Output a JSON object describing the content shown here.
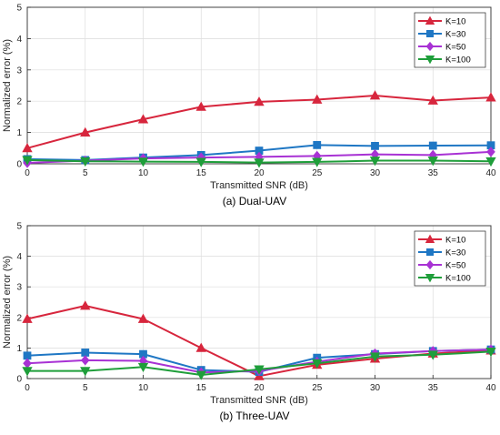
{
  "chart_data": [
    {
      "type": "line",
      "caption": "(a) Dual-UAV",
      "xlabel": "Transmitted SNR (dB)",
      "ylabel": "Normalized error (%)",
      "x": [
        0,
        5,
        10,
        15,
        20,
        25,
        30,
        35,
        40
      ],
      "xlim": [
        0,
        40
      ],
      "ylim": [
        0,
        5
      ],
      "xticks": [
        "0",
        "5",
        "10",
        "15",
        "20",
        "25",
        "30",
        "35",
        "40"
      ],
      "yticks": [
        "0",
        "1",
        "2",
        "3",
        "4",
        "5"
      ],
      "grid": true,
      "legend_position": "top-right",
      "series": [
        {
          "name": "K=10",
          "color": "#d7263d",
          "marker": "triangle-up",
          "values": [
            0.5,
            1.0,
            1.42,
            1.82,
            1.98,
            2.05,
            2.18,
            2.02,
            2.12
          ]
        },
        {
          "name": "K=30",
          "color": "#1f77c4",
          "marker": "square",
          "values": [
            0.15,
            0.12,
            0.2,
            0.28,
            0.42,
            0.6,
            0.57,
            0.58,
            0.59
          ]
        },
        {
          "name": "K=50",
          "color": "#a832d4",
          "marker": "diamond",
          "values": [
            0.03,
            0.1,
            0.17,
            0.2,
            0.22,
            0.25,
            0.3,
            0.28,
            0.38
          ]
        },
        {
          "name": "K=100",
          "color": "#1f9e3a",
          "marker": "triangle-down",
          "values": [
            0.12,
            0.08,
            0.07,
            0.06,
            0.04,
            0.06,
            0.1,
            0.1,
            0.08
          ]
        }
      ]
    },
    {
      "type": "line",
      "caption": "(b) Three-UAV",
      "xlabel": "Transmitted SNR (dB)",
      "ylabel": "Normalized error (%)",
      "x": [
        0,
        5,
        10,
        15,
        20,
        25,
        30,
        35,
        40
      ],
      "xlim": [
        0,
        40
      ],
      "ylim": [
        0,
        5
      ],
      "xticks": [
        "0",
        "5",
        "10",
        "15",
        "20",
        "25",
        "30",
        "35",
        "40"
      ],
      "yticks": [
        "0",
        "1",
        "2",
        "3",
        "4",
        "5"
      ],
      "grid": true,
      "legend_position": "top-right",
      "series": [
        {
          "name": "K=10",
          "color": "#d7263d",
          "marker": "triangle-up",
          "values": [
            1.95,
            2.38,
            1.95,
            1.0,
            0.08,
            0.45,
            0.65,
            0.82,
            0.92
          ]
        },
        {
          "name": "K=30",
          "color": "#1f77c4",
          "marker": "square",
          "values": [
            0.75,
            0.85,
            0.8,
            0.28,
            0.22,
            0.68,
            0.8,
            0.9,
            0.95
          ]
        },
        {
          "name": "K=50",
          "color": "#a832d4",
          "marker": "diamond",
          "values": [
            0.5,
            0.6,
            0.58,
            0.2,
            0.25,
            0.55,
            0.82,
            0.9,
            0.95
          ]
        },
        {
          "name": "K=100",
          "color": "#1f9e3a",
          "marker": "triangle-down",
          "values": [
            0.25,
            0.25,
            0.38,
            0.12,
            0.3,
            0.5,
            0.72,
            0.78,
            0.88
          ]
        }
      ]
    }
  ]
}
